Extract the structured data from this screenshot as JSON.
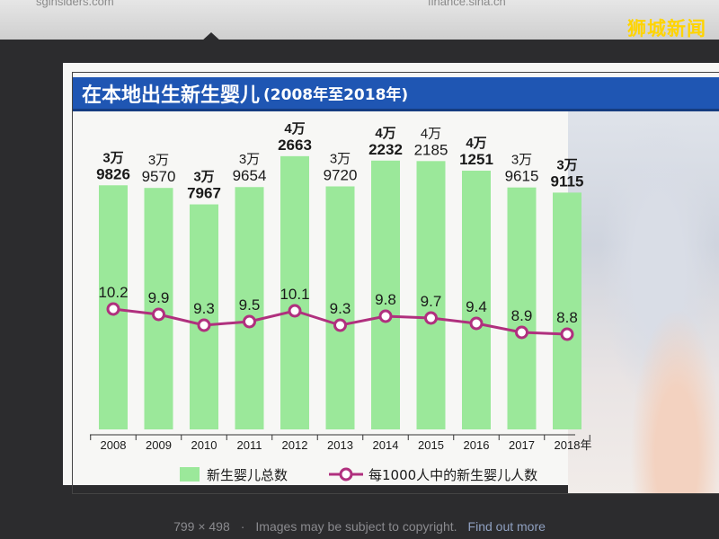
{
  "browser": {
    "url_left": "sginsiders.com",
    "url_right": "finance.sina.cn",
    "watermark": "狮城新闻"
  },
  "footer": {
    "size": "799 × 498",
    "separator": "·",
    "copyright": "Images may be subject to copyright.",
    "find_more": "Find out more"
  },
  "colors": {
    "title_bar": "#1f56b3",
    "bar": "#9be89a",
    "line": "#b0307e",
    "marker_fill": "#ffffff"
  },
  "chart_data": {
    "type": "bar",
    "title": "在本地出生新生婴儿",
    "subtitle": "(2008年至2018年)",
    "x_unit": "年",
    "categories": [
      "2008",
      "2009",
      "2010",
      "2011",
      "2012",
      "2013",
      "2014",
      "2015",
      "2016",
      "2017",
      "2018"
    ],
    "series": [
      {
        "name": "新生婴儿总数",
        "kind": "bar",
        "values": [
          39826,
          39570,
          37967,
          39654,
          42663,
          39720,
          42232,
          42185,
          41251,
          39615,
          39115
        ],
        "labels_top": [
          "3万",
          "3万",
          "3万",
          "3万",
          "4万",
          "3万",
          "4万",
          "4万",
          "4万",
          "3万",
          "3万"
        ],
        "labels_bottom": [
          "9826",
          "9570",
          "7967",
          "9654",
          "2663",
          "9720",
          "2232",
          "2185",
          "1251",
          "9615",
          "9115"
        ],
        "labels_bold": [
          true,
          false,
          true,
          false,
          true,
          false,
          true,
          false,
          true,
          false,
          true
        ]
      },
      {
        "name": "每1000人中的新生婴儿人数",
        "kind": "line",
        "values": [
          10.2,
          9.9,
          9.3,
          9.5,
          10.1,
          9.3,
          9.8,
          9.7,
          9.4,
          8.9,
          8.8
        ],
        "labels": [
          "10.2",
          "9.9",
          "9.3",
          "9.5",
          "10.1",
          "9.3",
          "9.8",
          "9.7",
          "9.4",
          "8.9",
          "8.8"
        ]
      }
    ],
    "legend": "bottom",
    "grid": false
  }
}
